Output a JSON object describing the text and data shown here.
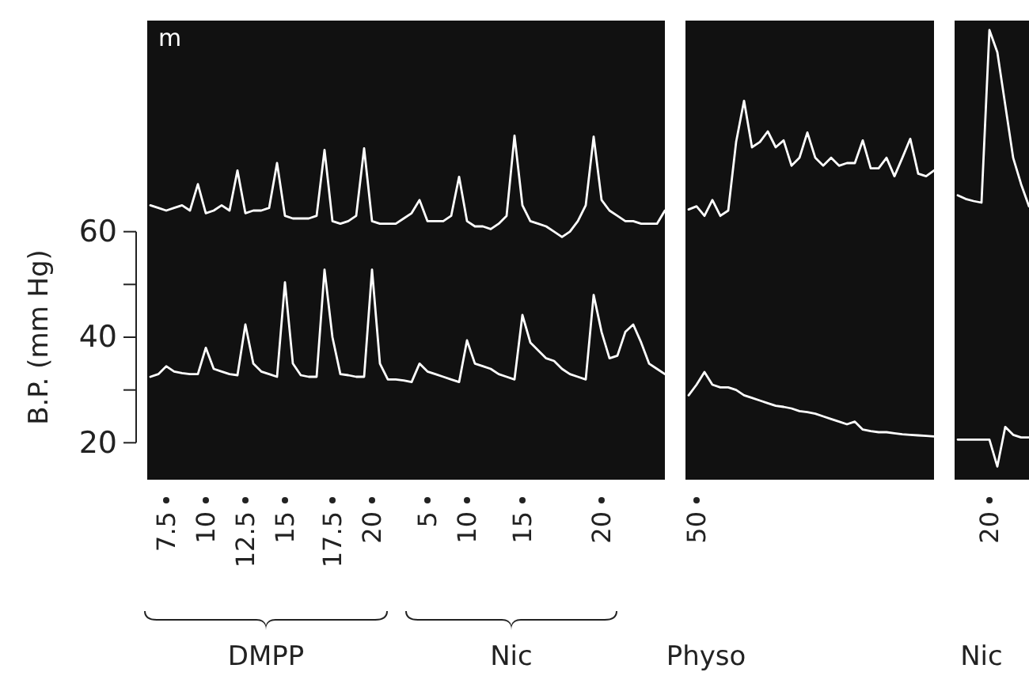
{
  "chart_data": {
    "type": "line",
    "ylabel": "B.P. (mm Hg)",
    "ylim": [
      13,
      100
    ],
    "yticks": [
      20,
      {
        "value": 30,
        "label": null
      },
      40,
      {
        "value": 50,
        "label": null
      },
      60
    ],
    "categories": [
      null,
      null,
      "7.5",
      null,
      null,
      null,
      null,
      "10",
      null,
      null,
      null,
      null,
      "12.5",
      null,
      null,
      null,
      null,
      "15",
      null,
      null,
      null,
      null,
      null,
      "17.5",
      null,
      null,
      null,
      null,
      "20",
      null,
      null,
      null,
      null,
      null,
      null,
      "5",
      null,
      null,
      null,
      null,
      "10",
      null,
      null,
      null,
      null,
      null,
      null,
      "15",
      null,
      null,
      null,
      null,
      null,
      null,
      null,
      null,
      null,
      "20",
      null,
      null,
      null,
      null,
      null,
      null,
      null,
      null,
      null,
      null,
      null,
      "50",
      null,
      null,
      null,
      null,
      null,
      null,
      null,
      null,
      null,
      null,
      null,
      null,
      null,
      null,
      null,
      null,
      null,
      null,
      null,
      null,
      null,
      null,
      null,
      null,
      null,
      null,
      null,
      null,
      null,
      null,
      null,
      null,
      null,
      null,
      null,
      null,
      "20",
      null,
      null,
      null,
      null,
      null
    ],
    "annotations": [
      "m",
      "DMPP",
      "Nic",
      "Physo",
      "Nic"
    ],
    "series": [
      {
        "color": "#ffffff",
        "values": [
          65,
          64.5,
          64,
          64.5,
          65,
          64,
          69,
          63.5,
          64,
          65,
          64,
          71.6,
          63.5,
          64,
          64,
          64.5,
          73,
          63,
          62.5,
          62.5,
          62.5,
          63,
          75.5,
          62,
          61.5,
          62,
          63,
          75.8,
          62,
          61.5,
          61.5,
          61.5,
          62.5,
          63.5,
          66,
          62,
          62,
          62,
          63,
          70.4,
          62,
          61,
          61,
          60.5,
          61.5,
          63,
          78.2,
          65,
          62,
          61.5,
          61,
          60,
          59,
          60,
          62,
          65,
          78,
          66,
          64,
          63,
          62,
          62,
          61.5,
          61.5,
          61.5,
          64,
          null,
          null,
          64.2,
          64.8,
          63,
          66,
          63,
          64,
          77,
          84.8,
          76,
          77,
          79,
          76,
          77.3,
          72.5,
          74,
          78.8,
          74,
          72.5,
          74,
          72.5,
          73,
          73,
          77.3,
          72,
          72,
          74,
          70.5,
          74,
          77.6,
          71,
          70.5,
          71.6,
          null,
          null,
          66.9,
          66.2,
          65.8,
          65.5,
          98.2,
          94,
          84,
          74,
          69,
          64.8
        ]
      },
      {
        "color": "#ffffff",
        "values": [
          32.5,
          33,
          34.5,
          33.5,
          33.2,
          33,
          33,
          38,
          34,
          33.5,
          33,
          32.8,
          42.4,
          35,
          33.5,
          33,
          32.5,
          50.4,
          35,
          32.8,
          32.5,
          32.5,
          52.8,
          40,
          33,
          32.8,
          32.5,
          32.5,
          52.8,
          35,
          32,
          32,
          31.8,
          31.5,
          35,
          33.5,
          33,
          32.5,
          32,
          31.5,
          39.4,
          35,
          34.5,
          34,
          33,
          32.5,
          32,
          44.2,
          39,
          37.5,
          36,
          35.5,
          34,
          33,
          32.5,
          32,
          48,
          41,
          36,
          36.5,
          41,
          42.4,
          39,
          35,
          34,
          33,
          null,
          null,
          29,
          31,
          33.4,
          31,
          30.5,
          30.5,
          30,
          29,
          28.5,
          28,
          27.5,
          27,
          26.8,
          26.5,
          26,
          25.8,
          25.5,
          25,
          24.5,
          24,
          23.5,
          24,
          22.5,
          22.2,
          22,
          22,
          21.8,
          21.6,
          21.5,
          21.4,
          21.3,
          21.2,
          null,
          null,
          20.6,
          20.6,
          20.6,
          20.6,
          20.6,
          15.5,
          23,
          21.5,
          21,
          21
        ]
      }
    ]
  }
}
